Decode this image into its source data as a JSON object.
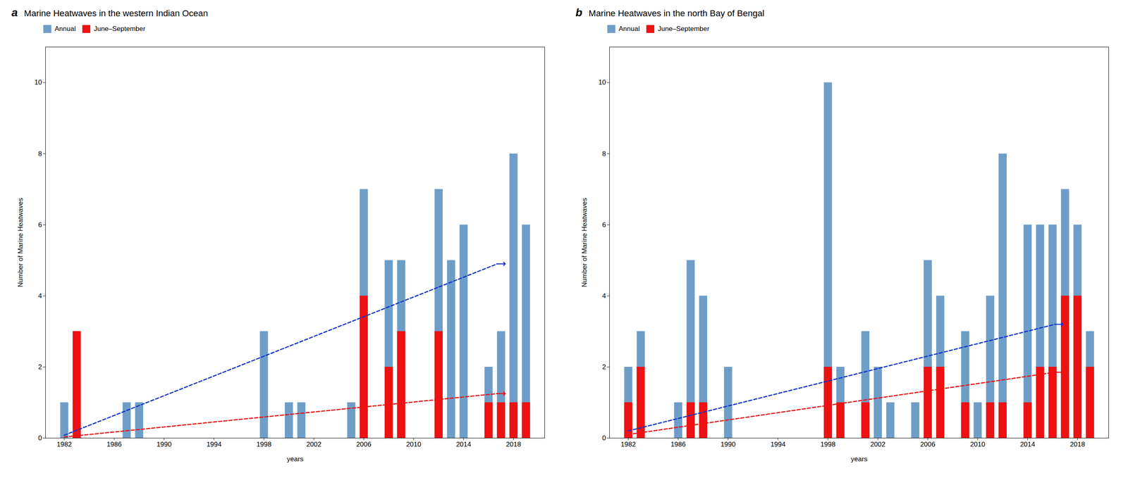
{
  "chart_data": [
    {
      "type": "bar",
      "title": "Marine Heatwaves in the western Indian Ocean",
      "annotations": [
        "a"
      ],
      "x": [
        1982,
        1983,
        1987,
        1988,
        1998,
        2000,
        2001,
        2005,
        2006,
        2008,
        2009,
        2012,
        2013,
        2014,
        2016,
        2017,
        2018,
        2019
      ],
      "series": [
        {
          "name": "Annual",
          "color": "#6e9ec8",
          "values": [
            1,
            3,
            1,
            1,
            3,
            1,
            1,
            1,
            7,
            5,
            5,
            7,
            5,
            6,
            2,
            3,
            8,
            6
          ]
        },
        {
          "name": "June–September",
          "color": "#ee1111",
          "values": [
            null,
            3,
            null,
            null,
            null,
            null,
            null,
            null,
            4,
            2,
            3,
            3,
            null,
            null,
            1,
            1,
            1,
            1
          ]
        },
        {
          "type": "line",
          "color": "#1133cc",
          "line_style": "dashed",
          "marker": "arrow",
          "x": [
            1982.0,
            2016.7
          ],
          "values": [
            0.08,
            4.9
          ]
        },
        {
          "type": "line",
          "color": "#ee1111",
          "line_style": "dashed",
          "marker": "arrow",
          "x": [
            1982.0,
            2016.7
          ],
          "values": [
            0.03,
            1.25
          ]
        }
      ],
      "xlabel": "years",
      "ylabel": "Number of Marine Heatwaves",
      "xlim": [
        1980.5,
        2020.5
      ],
      "xticks": [
        1982,
        1986,
        1990,
        1994,
        1998,
        2002,
        2006,
        2010,
        2014,
        2018
      ],
      "ylim": [
        0,
        11
      ],
      "yticks": [
        0,
        2,
        4,
        6,
        8,
        10
      ],
      "legend": "upper left",
      "grid": false
    },
    {
      "type": "bar",
      "title": "Marine Heatwaves in the north Bay of Bengal",
      "annotations": [
        "b"
      ],
      "x": [
        1982,
        1983,
        1986,
        1987,
        1988,
        1990,
        1998,
        1999,
        2001,
        2002,
        2003,
        2005,
        2006,
        2007,
        2009,
        2010,
        2011,
        2012,
        2014,
        2015,
        2016,
        2017,
        2018,
        2019
      ],
      "series": [
        {
          "name": "Annual",
          "color": "#6e9ec8",
          "values": [
            2,
            3,
            1,
            5,
            4,
            2,
            10,
            2,
            3,
            2,
            1,
            1,
            5,
            4,
            3,
            1,
            4,
            8,
            6,
            6,
            6,
            7,
            6,
            3
          ]
        },
        {
          "name": "June–September",
          "color": "#ee1111",
          "values": [
            1,
            2,
            null,
            1,
            1,
            null,
            2,
            1,
            1,
            null,
            null,
            null,
            2,
            2,
            1,
            null,
            1,
            1,
            1,
            2,
            2,
            4,
            4,
            2
          ]
        },
        {
          "type": "line",
          "color": "#1133cc",
          "line_style": "dashed",
          "marker": "arrow",
          "x": [
            1982.0,
            2016.2
          ],
          "values": [
            0.2,
            3.2
          ]
        },
        {
          "type": "line",
          "color": "#ee1111",
          "line_style": "dashed",
          "marker": "arrow",
          "x": [
            1982.0,
            2016.2
          ],
          "values": [
            0.1,
            1.85
          ]
        }
      ],
      "xlabel": "years",
      "ylabel": "Number of Marine Heatwaves",
      "xlim": [
        1980.5,
        2020.5
      ],
      "xticks": [
        1982,
        1986,
        1990,
        1994,
        1998,
        2002,
        2006,
        2010,
        2014,
        2018
      ],
      "ylim": [
        0,
        11
      ],
      "yticks": [
        0,
        2,
        4,
        6,
        8,
        10
      ],
      "legend": "upper left",
      "grid": false
    }
  ]
}
